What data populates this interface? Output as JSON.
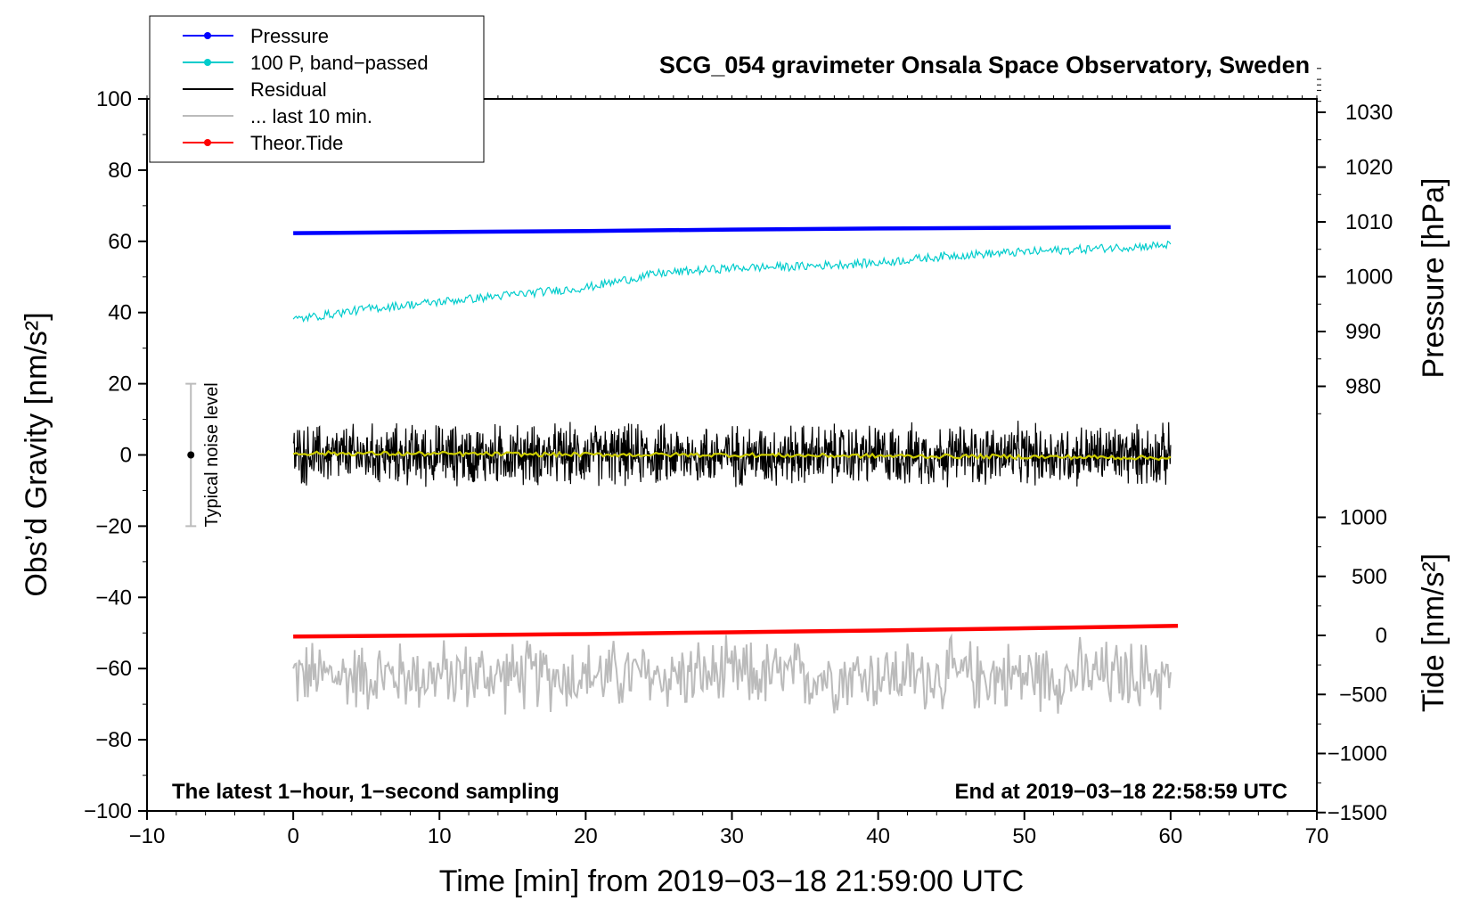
{
  "chart_data": {
    "type": "line",
    "title": "SCG_054 gravimeter Onsala Space Observatory, Sweden",
    "xlabel": "Time [min] from 2019−03−18 21:59:00 UTC",
    "ylabel_left": "Obs’d Gravity [nm/s²]",
    "ylabel_pressure": "Pressure [hPa]",
    "ylabel_tide": "Tide [nm/s²]",
    "xlim": [
      -10,
      70
    ],
    "ylim": [
      -100,
      100
    ],
    "x_ticks": [
      -10,
      0,
      10,
      20,
      30,
      40,
      50,
      60,
      70
    ],
    "x_tick_labels": [
      "−10",
      "0",
      "10",
      "20",
      "30",
      "40",
      "50",
      "60",
      "70"
    ],
    "y_ticks": [
      -100,
      -80,
      -60,
      -40,
      -20,
      0,
      20,
      40,
      60,
      80,
      100
    ],
    "y_tick_labels": [
      "−100",
      "−80",
      "−60",
      "−40",
      "−20",
      "0",
      "20",
      "40",
      "60",
      "80",
      "100"
    ],
    "pressure_ticks": [
      980,
      990,
      1000,
      1010,
      1020,
      1030
    ],
    "pressure_tick_labels": [
      "980",
      "990",
      "1000",
      "1010",
      "1020",
      "1030"
    ],
    "tide_ticks": [
      -1500,
      -1000,
      -500,
      0,
      500,
      1000
    ],
    "tide_tick_labels": [
      "−1500",
      "−1000",
      "−500",
      "0",
      "500",
      "1000"
    ],
    "note_left": "The latest 1−hour, 1−second sampling",
    "note_right": "End at 2019−03−18 22:58:59 UTC",
    "noise_label": "Typical noise level",
    "noise_range": [
      -20,
      20
    ],
    "noise_x": -7,
    "legend_position": "top-left",
    "legend": [
      {
        "label": "Pressure",
        "color": "#0000ff",
        "marker": true
      },
      {
        "label": "100 P, band−passed",
        "color": "#00cccc",
        "marker": true
      },
      {
        "label": "Residual",
        "color": "#000000",
        "marker": false
      },
      {
        "label": "... last 10 min.",
        "color": "#bbbbbb",
        "marker": false
      },
      {
        "label": "Theor.Tide",
        "color": "#ff0000",
        "marker": true
      }
    ],
    "series": [
      {
        "name": "Pressure",
        "color": "#0000ff",
        "x": [
          0,
          10,
          20,
          30,
          40,
          50,
          60
        ],
        "y": [
          62.3,
          62.6,
          62.9,
          63.3,
          63.6,
          63.8,
          64.0
        ]
      },
      {
        "name": "100 P, band−passed",
        "color": "#00cccc",
        "x": [
          0,
          5,
          10,
          15,
          20,
          25,
          30,
          35,
          40,
          45,
          50,
          55,
          60
        ],
        "y": [
          38,
          41,
          43,
          45,
          47,
          51,
          52.5,
          53,
          54,
          56,
          57,
          58,
          59
        ]
      },
      {
        "name": "Residual",
        "color": "#000000",
        "x": [
          0,
          60
        ],
        "y": [
          0,
          0
        ],
        "amplitude": 10
      },
      {
        "name": "Residual smoothed",
        "color": "#cccc00",
        "x": [
          0,
          10,
          20,
          30,
          40,
          50,
          60
        ],
        "y": [
          0.5,
          0.3,
          0.1,
          0,
          -0.3,
          -0.5,
          -0.8
        ]
      },
      {
        "name": "Theor.Tide",
        "color": "#ff0000",
        "x": [
          0,
          10,
          20,
          30,
          40,
          50,
          60.5
        ],
        "y": [
          -51,
          -50.7,
          -50.3,
          -49.8,
          -49.3,
          -48.7,
          -48
        ]
      },
      {
        "name": "... last 10 min.",
        "color": "#bbbbbb",
        "x": [
          0,
          60
        ],
        "y": [
          -62,
          -62
        ],
        "amplitude": 10
      }
    ]
  }
}
